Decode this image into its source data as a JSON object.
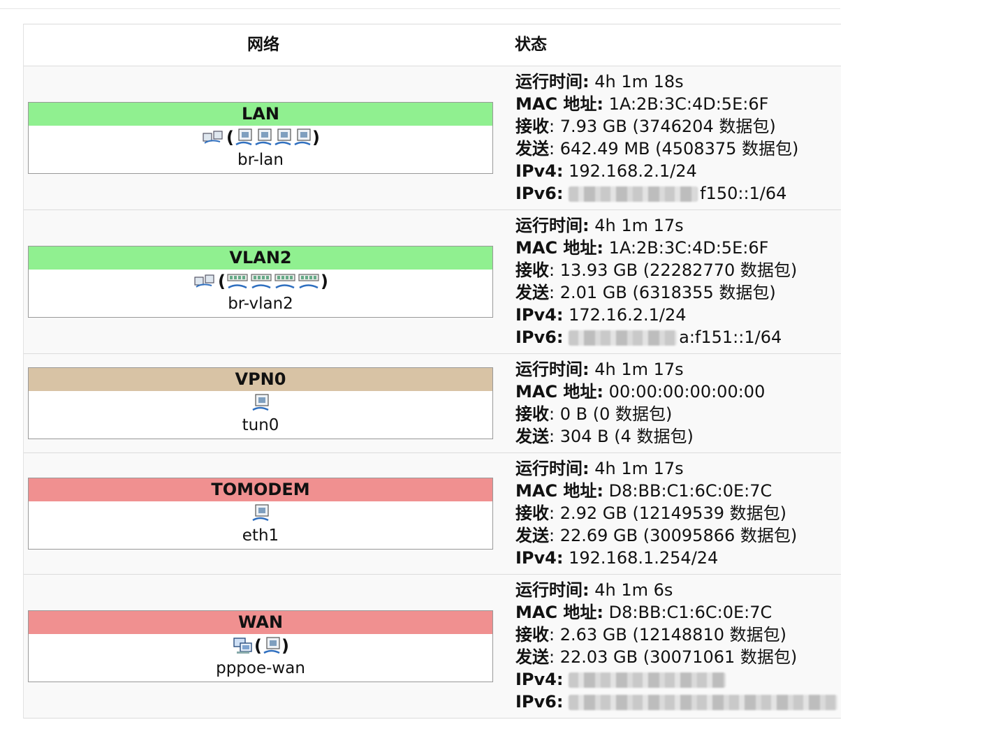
{
  "header": {
    "network_label": "网络",
    "status_label": "状态"
  },
  "labels": {
    "uptime": "运行时间:",
    "mac": "MAC 地址:",
    "rx": "接收",
    "tx": "发送",
    "ipv4": "IPv4:",
    "ipv6": "IPv6:"
  },
  "interfaces": [
    {
      "name": "LAN",
      "device": "br-lan",
      "color": "#90f090",
      "uptime": "4h 1m 18s",
      "mac": "1A:2B:3C:4D:5E:6F",
      "rx": ": 7.93 GB (3746204 数据包)",
      "tx": ": 642.49 MB (4508375 数据包)",
      "ipv4": "192.168.2.1/24",
      "ipv6": "f150::1/64"
    },
    {
      "name": "VLAN2",
      "device": "br-vlan2",
      "color": "#90f090",
      "uptime": "4h 1m 17s",
      "mac": "1A:2B:3C:4D:5E:6F",
      "rx": ": 13.93 GB (22282770 数据包)",
      "tx": ": 2.01 GB (6318355 数据包)",
      "ipv4": "172.16.2.1/24",
      "ipv6": "a:f151::1/64"
    },
    {
      "name": "VPN0",
      "device": "tun0",
      "color": "#d8c3a5",
      "uptime": "4h 1m 17s",
      "mac": "00:00:00:00:00:00",
      "rx": ": 0 B (0 数据包)",
      "tx": ": 304 B (4 数据包)"
    },
    {
      "name": "TOMODEM",
      "device": "eth1",
      "color": "#f09090",
      "uptime": "4h 1m 17s",
      "mac": "D8:BB:C1:6C:0E:7C",
      "rx": ": 2.92 GB (12149539 数据包)",
      "tx": ": 22.69 GB (30095866 数据包)",
      "ipv4": "192.168.1.254/24"
    },
    {
      "name": "WAN",
      "device": "pppoe-wan",
      "color": "#f09090",
      "uptime": "4h 1m 6s",
      "mac": "D8:BB:C1:6C:0E:7C",
      "rx": ": 2.63 GB (12148810 数据包)",
      "tx": ": 22.03 GB (30071061 数据包)"
    }
  ],
  "icons": {
    "bridge": "bridge-icon",
    "ethernet": "ethernet-port-icon",
    "vlan": "vlan-port-icon",
    "tunnel": "tunnel-icon",
    "ppp": "ppp-icon"
  }
}
